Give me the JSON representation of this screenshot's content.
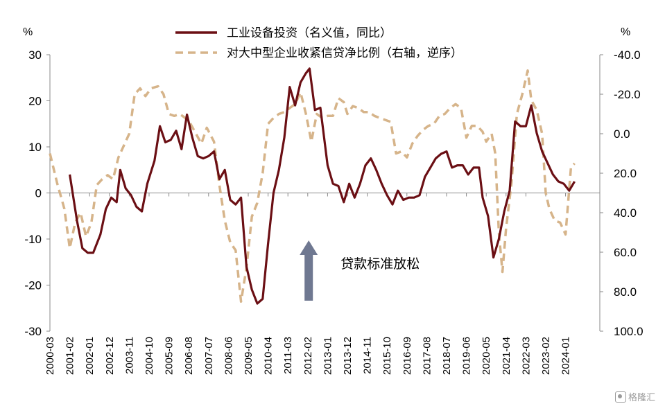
{
  "chart_data": {
    "type": "line",
    "title": "",
    "left_axis": {
      "unit": "%",
      "ylim": [
        -30,
        30
      ],
      "ticks": [
        30,
        20,
        10,
        0,
        -10,
        -20,
        -30
      ]
    },
    "right_axis": {
      "unit": "%",
      "ylim": [
        -40,
        100
      ],
      "inverted": true,
      "ticks": [
        "-40.0",
        "-20.0",
        "0.0",
        "20.0",
        "40.0",
        "60.0",
        "80.0",
        "100.0"
      ]
    },
    "x_ticks": [
      "2000-03",
      "2001-02",
      "2002-01",
      "2002-12",
      "2003-11",
      "2004-10",
      "2005-09",
      "2006-08",
      "2007-07",
      "2008-06",
      "2009-05",
      "2010-04",
      "2011-03",
      "2012-02",
      "2013-01",
      "2013-12",
      "2014-11",
      "2015-10",
      "2016-09",
      "2017-08",
      "2018-07",
      "2019-06",
      "2020-05",
      "2021-04",
      "2022-03",
      "2023-02",
      "2024-01"
    ],
    "legend_position": "top-center",
    "grid": false,
    "series": [
      {
        "name": "工业设备投资（名义值，同比）",
        "axis": "left",
        "style": "solid",
        "color": "#6b0f14",
        "points": [
          [
            "2001-02",
            4
          ],
          [
            "2001-06",
            -6
          ],
          [
            "2001-09",
            -12
          ],
          [
            "2001-12",
            -13
          ],
          [
            "2002-03",
            -13
          ],
          [
            "2002-07",
            -9
          ],
          [
            "2002-10",
            -3.5
          ],
          [
            "2003-01",
            -1
          ],
          [
            "2003-04",
            -2
          ],
          [
            "2003-06",
            5
          ],
          [
            "2003-09",
            1
          ],
          [
            "2003-12",
            -0.5
          ],
          [
            "2004-03",
            -3
          ],
          [
            "2004-06",
            -4
          ],
          [
            "2004-09",
            2
          ],
          [
            "2005-01",
            7
          ],
          [
            "2005-04",
            14.5
          ],
          [
            "2005-07",
            11
          ],
          [
            "2005-10",
            11.5
          ],
          [
            "2006-01",
            13.5
          ],
          [
            "2006-04",
            9.5
          ],
          [
            "2006-07",
            17
          ],
          [
            "2006-10",
            12
          ],
          [
            "2007-01",
            8
          ],
          [
            "2007-04",
            7.5
          ],
          [
            "2007-07",
            8
          ],
          [
            "2007-10",
            9
          ],
          [
            "2008-01",
            3
          ],
          [
            "2008-04",
            5
          ],
          [
            "2008-07",
            -1.5
          ],
          [
            "2008-10",
            -2.5
          ],
          [
            "2009-01",
            -1
          ],
          [
            "2009-04",
            -16
          ],
          [
            "2009-07",
            -21
          ],
          [
            "2009-10",
            -24
          ],
          [
            "2010-01",
            -23
          ],
          [
            "2010-04",
            -11
          ],
          [
            "2010-07",
            0
          ],
          [
            "2010-10",
            5
          ],
          [
            "2011-01",
            12
          ],
          [
            "2011-04",
            23
          ],
          [
            "2011-07",
            19
          ],
          [
            "2011-10",
            24
          ],
          [
            "2012-01",
            26
          ],
          [
            "2012-03",
            27
          ],
          [
            "2012-06",
            18
          ],
          [
            "2012-09",
            18.5
          ],
          [
            "2013-01",
            6
          ],
          [
            "2013-04",
            2
          ],
          [
            "2013-07",
            1.5
          ],
          [
            "2013-10",
            -2
          ],
          [
            "2014-01",
            2
          ],
          [
            "2014-04",
            -1
          ],
          [
            "2014-07",
            2
          ],
          [
            "2014-10",
            6
          ],
          [
            "2015-01",
            7.5
          ],
          [
            "2015-04",
            5
          ],
          [
            "2015-07",
            2
          ],
          [
            "2015-10",
            -0.5
          ],
          [
            "2016-01",
            -2.5
          ],
          [
            "2016-04",
            0.5
          ],
          [
            "2016-07",
            -1.5
          ],
          [
            "2016-10",
            -1
          ],
          [
            "2017-01",
            -1
          ],
          [
            "2017-04",
            -0.5
          ],
          [
            "2017-07",
            3.5
          ],
          [
            "2017-10",
            5.5
          ],
          [
            "2018-01",
            7.5
          ],
          [
            "2018-04",
            8.5
          ],
          [
            "2018-07",
            9
          ],
          [
            "2018-10",
            5.5
          ],
          [
            "2019-01",
            6
          ],
          [
            "2019-04",
            6
          ],
          [
            "2019-07",
            4
          ],
          [
            "2019-10",
            5.5
          ],
          [
            "2020-01",
            5.5
          ],
          [
            "2020-03",
            -1
          ],
          [
            "2020-06",
            -5
          ],
          [
            "2020-09",
            -14
          ],
          [
            "2020-12",
            -10
          ],
          [
            "2021-03",
            -4
          ],
          [
            "2021-06",
            0.5
          ],
          [
            "2021-09",
            15.5
          ],
          [
            "2021-12",
            14.5
          ],
          [
            "2022-03",
            14.5
          ],
          [
            "2022-06",
            19
          ],
          [
            "2022-09",
            13
          ],
          [
            "2022-12",
            9
          ],
          [
            "2023-03",
            6.5
          ],
          [
            "2023-06",
            4
          ],
          [
            "2023-09",
            2.5
          ],
          [
            "2023-12",
            2
          ],
          [
            "2024-03",
            0.5
          ],
          [
            "2024-06",
            2.5
          ]
        ]
      },
      {
        "name": "对大中型企业收紧信贷净比例（右轴，逆序）",
        "axis": "right",
        "style": "dashed",
        "color": "#d6b48a",
        "points": [
          [
            "2000-03",
            10
          ],
          [
            "2000-07",
            25
          ],
          [
            "2000-11",
            38
          ],
          [
            "2001-02",
            58
          ],
          [
            "2001-05",
            45
          ],
          [
            "2001-08",
            40
          ],
          [
            "2001-11",
            52
          ],
          [
            "2002-02",
            45
          ],
          [
            "2002-05",
            26
          ],
          [
            "2002-08",
            23
          ],
          [
            "2002-11",
            21
          ],
          [
            "2003-02",
            23
          ],
          [
            "2003-05",
            12
          ],
          [
            "2003-08",
            6
          ],
          [
            "2003-11",
            0
          ],
          [
            "2004-02",
            -20
          ],
          [
            "2004-05",
            -23
          ],
          [
            "2004-08",
            -19
          ],
          [
            "2004-11",
            -23
          ],
          [
            "2005-03",
            -24
          ],
          [
            "2005-06",
            -20
          ],
          [
            "2005-09",
            -10
          ],
          [
            "2005-12",
            -9
          ],
          [
            "2006-03",
            -10
          ],
          [
            "2006-06",
            -8
          ],
          [
            "2006-09",
            -5
          ],
          [
            "2006-12",
            0
          ],
          [
            "2007-03",
            5
          ],
          [
            "2007-06",
            -3
          ],
          [
            "2007-10",
            4
          ],
          [
            "2008-01",
            26
          ],
          [
            "2008-04",
            44
          ],
          [
            "2008-07",
            55
          ],
          [
            "2008-10",
            59
          ],
          [
            "2009-01",
            85
          ],
          [
            "2009-04",
            68
          ],
          [
            "2009-07",
            42
          ],
          [
            "2009-10",
            35
          ],
          [
            "2010-01",
            20
          ],
          [
            "2010-04",
            -5
          ],
          [
            "2010-07",
            -8
          ],
          [
            "2010-10",
            -10
          ],
          [
            "2011-01",
            -11
          ],
          [
            "2011-04",
            -13
          ],
          [
            "2011-07",
            -15
          ],
          [
            "2011-10",
            -21
          ],
          [
            "2012-01",
            -10
          ],
          [
            "2012-04",
            4
          ],
          [
            "2012-07",
            -10
          ],
          [
            "2012-10",
            -8
          ],
          [
            "2013-01",
            -9
          ],
          [
            "2013-04",
            -9
          ],
          [
            "2013-07",
            -18
          ],
          [
            "2013-10",
            -16
          ],
          [
            "2013-12",
            -10
          ],
          [
            "2014-03",
            -14
          ],
          [
            "2014-06",
            -13
          ],
          [
            "2014-09",
            -11
          ],
          [
            "2014-12",
            -11
          ],
          [
            "2015-03",
            -9
          ],
          [
            "2015-06",
            -8
          ],
          [
            "2015-09",
            -7
          ],
          [
            "2015-12",
            -6
          ],
          [
            "2016-03",
            10
          ],
          [
            "2016-06",
            9
          ],
          [
            "2016-09",
            12
          ],
          [
            "2016-12",
            5
          ],
          [
            "2017-03",
            1
          ],
          [
            "2017-06",
            -2
          ],
          [
            "2017-09",
            -4
          ],
          [
            "2017-12",
            -5
          ],
          [
            "2018-03",
            -9
          ],
          [
            "2018-06",
            -10
          ],
          [
            "2018-09",
            -13
          ],
          [
            "2018-12",
            -15
          ],
          [
            "2019-03",
            -13
          ],
          [
            "2019-06",
            2
          ],
          [
            "2019-09",
            -4
          ],
          [
            "2019-12",
            -4
          ],
          [
            "2020-03",
            -1
          ],
          [
            "2020-05",
            4
          ],
          [
            "2020-08",
            0
          ],
          [
            "2020-10",
            10
          ],
          [
            "2020-12",
            50
          ],
          [
            "2021-02",
            70
          ],
          [
            "2021-04",
            48
          ],
          [
            "2021-07",
            25
          ],
          [
            "2021-10",
            -10
          ],
          [
            "2022-01",
            -20
          ],
          [
            "2022-04",
            -32
          ],
          [
            "2022-06",
            -17
          ],
          [
            "2022-09",
            -12
          ],
          [
            "2022-12",
            0
          ],
          [
            "2023-02",
            30
          ],
          [
            "2023-04",
            38
          ],
          [
            "2023-07",
            44
          ],
          [
            "2023-10",
            45
          ],
          [
            "2024-01",
            51
          ],
          [
            "2024-04",
            17
          ],
          [
            "2024-06",
            15
          ]
        ]
      }
    ],
    "annotations": [
      {
        "text": "贷款标准放松",
        "arrow": "up",
        "x": "2012-01"
      }
    ]
  },
  "watermark": {
    "text": "格隆汇"
  }
}
